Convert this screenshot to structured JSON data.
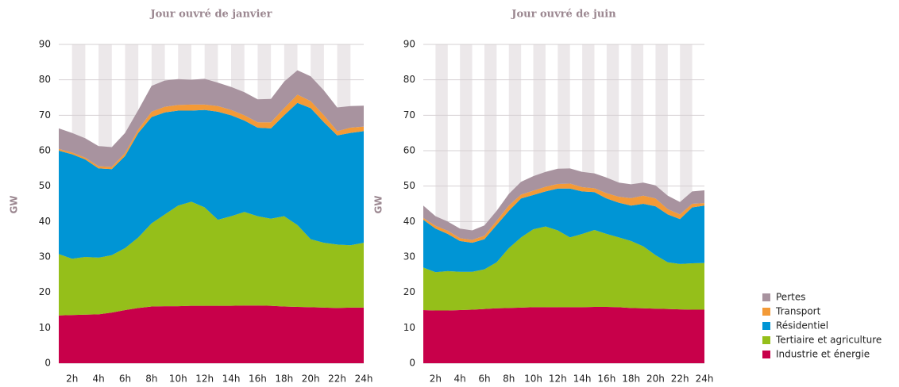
{
  "chart_data": [
    {
      "type": "stacked_area",
      "title": "Jour ouvré de janvier",
      "ylabel": "GW",
      "categories": [
        null,
        "2h",
        null,
        "4h",
        null,
        "6h",
        null,
        "8h",
        null,
        "10h",
        null,
        "12h",
        null,
        "14h",
        null,
        "16h",
        null,
        "18h",
        null,
        "20h",
        null,
        "22h",
        null,
        "24h"
      ],
      "ylim": [
        0,
        90
      ],
      "yticks": [
        0,
        10,
        20,
        30,
        40,
        50,
        60,
        70,
        80,
        90
      ],
      "grid": true,
      "series": [
        {
          "name": "Industrie et énergie",
          "color": "#c8004a",
          "values": [
            13.5,
            13.6,
            13.7,
            13.8,
            14.3,
            15,
            15.6,
            16,
            16.1,
            16.1,
            16.2,
            16.2,
            16.2,
            16.2,
            16.3,
            16.3,
            16.2,
            16,
            15.9,
            15.8,
            15.7,
            15.6,
            15.7,
            15.7
          ]
        },
        {
          "name": "Tertiaire et agriculture",
          "color": "#95bf1a",
          "values": [
            17.3,
            15.9,
            16.3,
            16,
            16.2,
            17.5,
            19.9,
            23.5,
            25.9,
            28.4,
            29.4,
            27.8,
            24.3,
            25.3,
            26.4,
            25.2,
            24.6,
            25.5,
            23.1,
            19.2,
            18.3,
            17.9,
            17.6,
            18.3
          ]
        },
        {
          "name": "Résidentiel",
          "color": "#0095d5",
          "values": [
            29.2,
            29.5,
            27.5,
            25.2,
            24.3,
            26,
            29.5,
            30,
            28.8,
            26.8,
            25.7,
            27.5,
            30.5,
            28.5,
            25.8,
            25,
            25.5,
            28.5,
            34.5,
            37,
            34,
            30.8,
            31.7,
            31.5
          ]
        },
        {
          "name": "Transport",
          "color": "#f39a37",
          "values": [
            0.5,
            0.5,
            0.5,
            0.6,
            0.6,
            0.8,
            1,
            1.5,
            1.6,
            1.6,
            1.7,
            1.5,
            1.6,
            1.5,
            1.5,
            1.5,
            1.7,
            2,
            2.3,
            2,
            2,
            1.2,
            1.5,
            1.3
          ]
        },
        {
          "name": "Pertes",
          "color": "#a8939f",
          "values": [
            5.8,
            5.5,
            5.5,
            5.7,
            5.6,
            5.7,
            5.5,
            7.3,
            7.4,
            7.3,
            7,
            7.3,
            6.6,
            6.5,
            6.5,
            6.5,
            6.6,
            7.5,
            6.9,
            7,
            7,
            6.7,
            6.1,
            5.9
          ]
        }
      ]
    },
    {
      "type": "stacked_area",
      "title": "Jour ouvré de juin",
      "ylabel": "GW",
      "categories": [
        null,
        "2h",
        null,
        "4h",
        null,
        "6h",
        null,
        "8h",
        null,
        "10h",
        null,
        "12h",
        null,
        "14h",
        null,
        "16h",
        null,
        "18h",
        null,
        "20h",
        null,
        "22h",
        null,
        "24h"
      ],
      "ylim": [
        0,
        90
      ],
      "yticks": [
        0,
        10,
        20,
        30,
        40,
        50,
        60,
        70,
        80,
        90
      ],
      "grid": true,
      "series": [
        {
          "color": "#c8004a",
          "values": [
            15,
            14.9,
            14.9,
            15,
            15.1,
            15.3,
            15.5,
            15.6,
            15.7,
            15.8,
            15.8,
            15.8,
            15.8,
            15.8,
            15.9,
            15.9,
            15.8,
            15.6,
            15.5,
            15.4,
            15.3,
            15.2,
            15.1,
            15.1
          ]
        },
        {
          "color": "#95bf1a",
          "values": [
            12,
            10.8,
            11.1,
            10.8,
            10.7,
            11.2,
            13,
            16.9,
            19.8,
            22,
            22.8,
            21.7,
            19.7,
            20.7,
            21.7,
            20.6,
            19.7,
            18.9,
            17.5,
            15.1,
            13.2,
            12.8,
            13.1,
            13.2
          ]
        },
        {
          "color": "#0095d5",
          "values": [
            13.5,
            12.3,
            10.5,
            8.7,
            8.2,
            8.5,
            10.5,
            10.5,
            11,
            9.7,
            9.9,
            11.8,
            13.8,
            12,
            10.7,
            10,
            9.8,
            10,
            12,
            13.8,
            13.5,
            12.7,
            15.8,
            16.2
          ]
        },
        {
          "color": "#f39a37",
          "values": [
            0.5,
            0.8,
            0.9,
            0.8,
            0.8,
            1,
            1.2,
            1.5,
            1.1,
            1.2,
            1.3,
            1.3,
            1.4,
            1.2,
            1.1,
            1.5,
            1.7,
            2.1,
            2.3,
            2.2,
            1.5,
            1.3,
            1,
            0.7
          ]
        },
        {
          "color": "#a8939f",
          "values": [
            3.5,
            2.7,
            2.6,
            2.7,
            2.7,
            2.9,
            2.8,
            3.3,
            3.6,
            4.1,
            4.2,
            4.3,
            4.3,
            4.3,
            4.2,
            4.4,
            4,
            3.9,
            3.7,
            3.7,
            3.8,
            3.5,
            3.5,
            3.6
          ]
        }
      ]
    }
  ]
}
